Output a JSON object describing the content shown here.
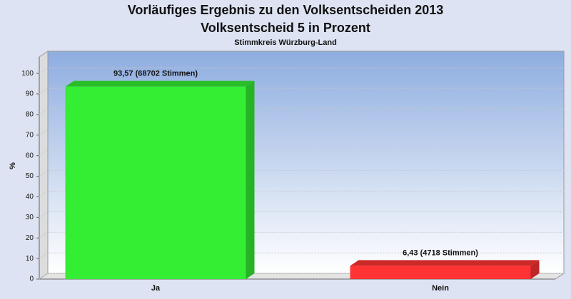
{
  "chart_data": {
    "type": "bar3d",
    "title": "Vorläufiges Ergebnis zu den Volksentscheiden 2013",
    "subtitle": "Volksentscheid 5 in Prozent",
    "caption": "Stimmkreis Würzburg-Land",
    "y_label": "%",
    "categories": [
      "Ja",
      "Nein"
    ],
    "values": [
      93.57,
      6.43
    ],
    "value_labels": [
      "93,57 (68702 Stimmen)",
      "6,43 (4718 Stimmen)"
    ],
    "colors": [
      "#33ee33",
      "#ff3333"
    ],
    "ylim": [
      0,
      108
    ],
    "yticks": [
      0,
      10,
      20,
      30,
      40,
      50,
      60,
      70,
      80,
      90,
      100
    ],
    "grid": true
  }
}
